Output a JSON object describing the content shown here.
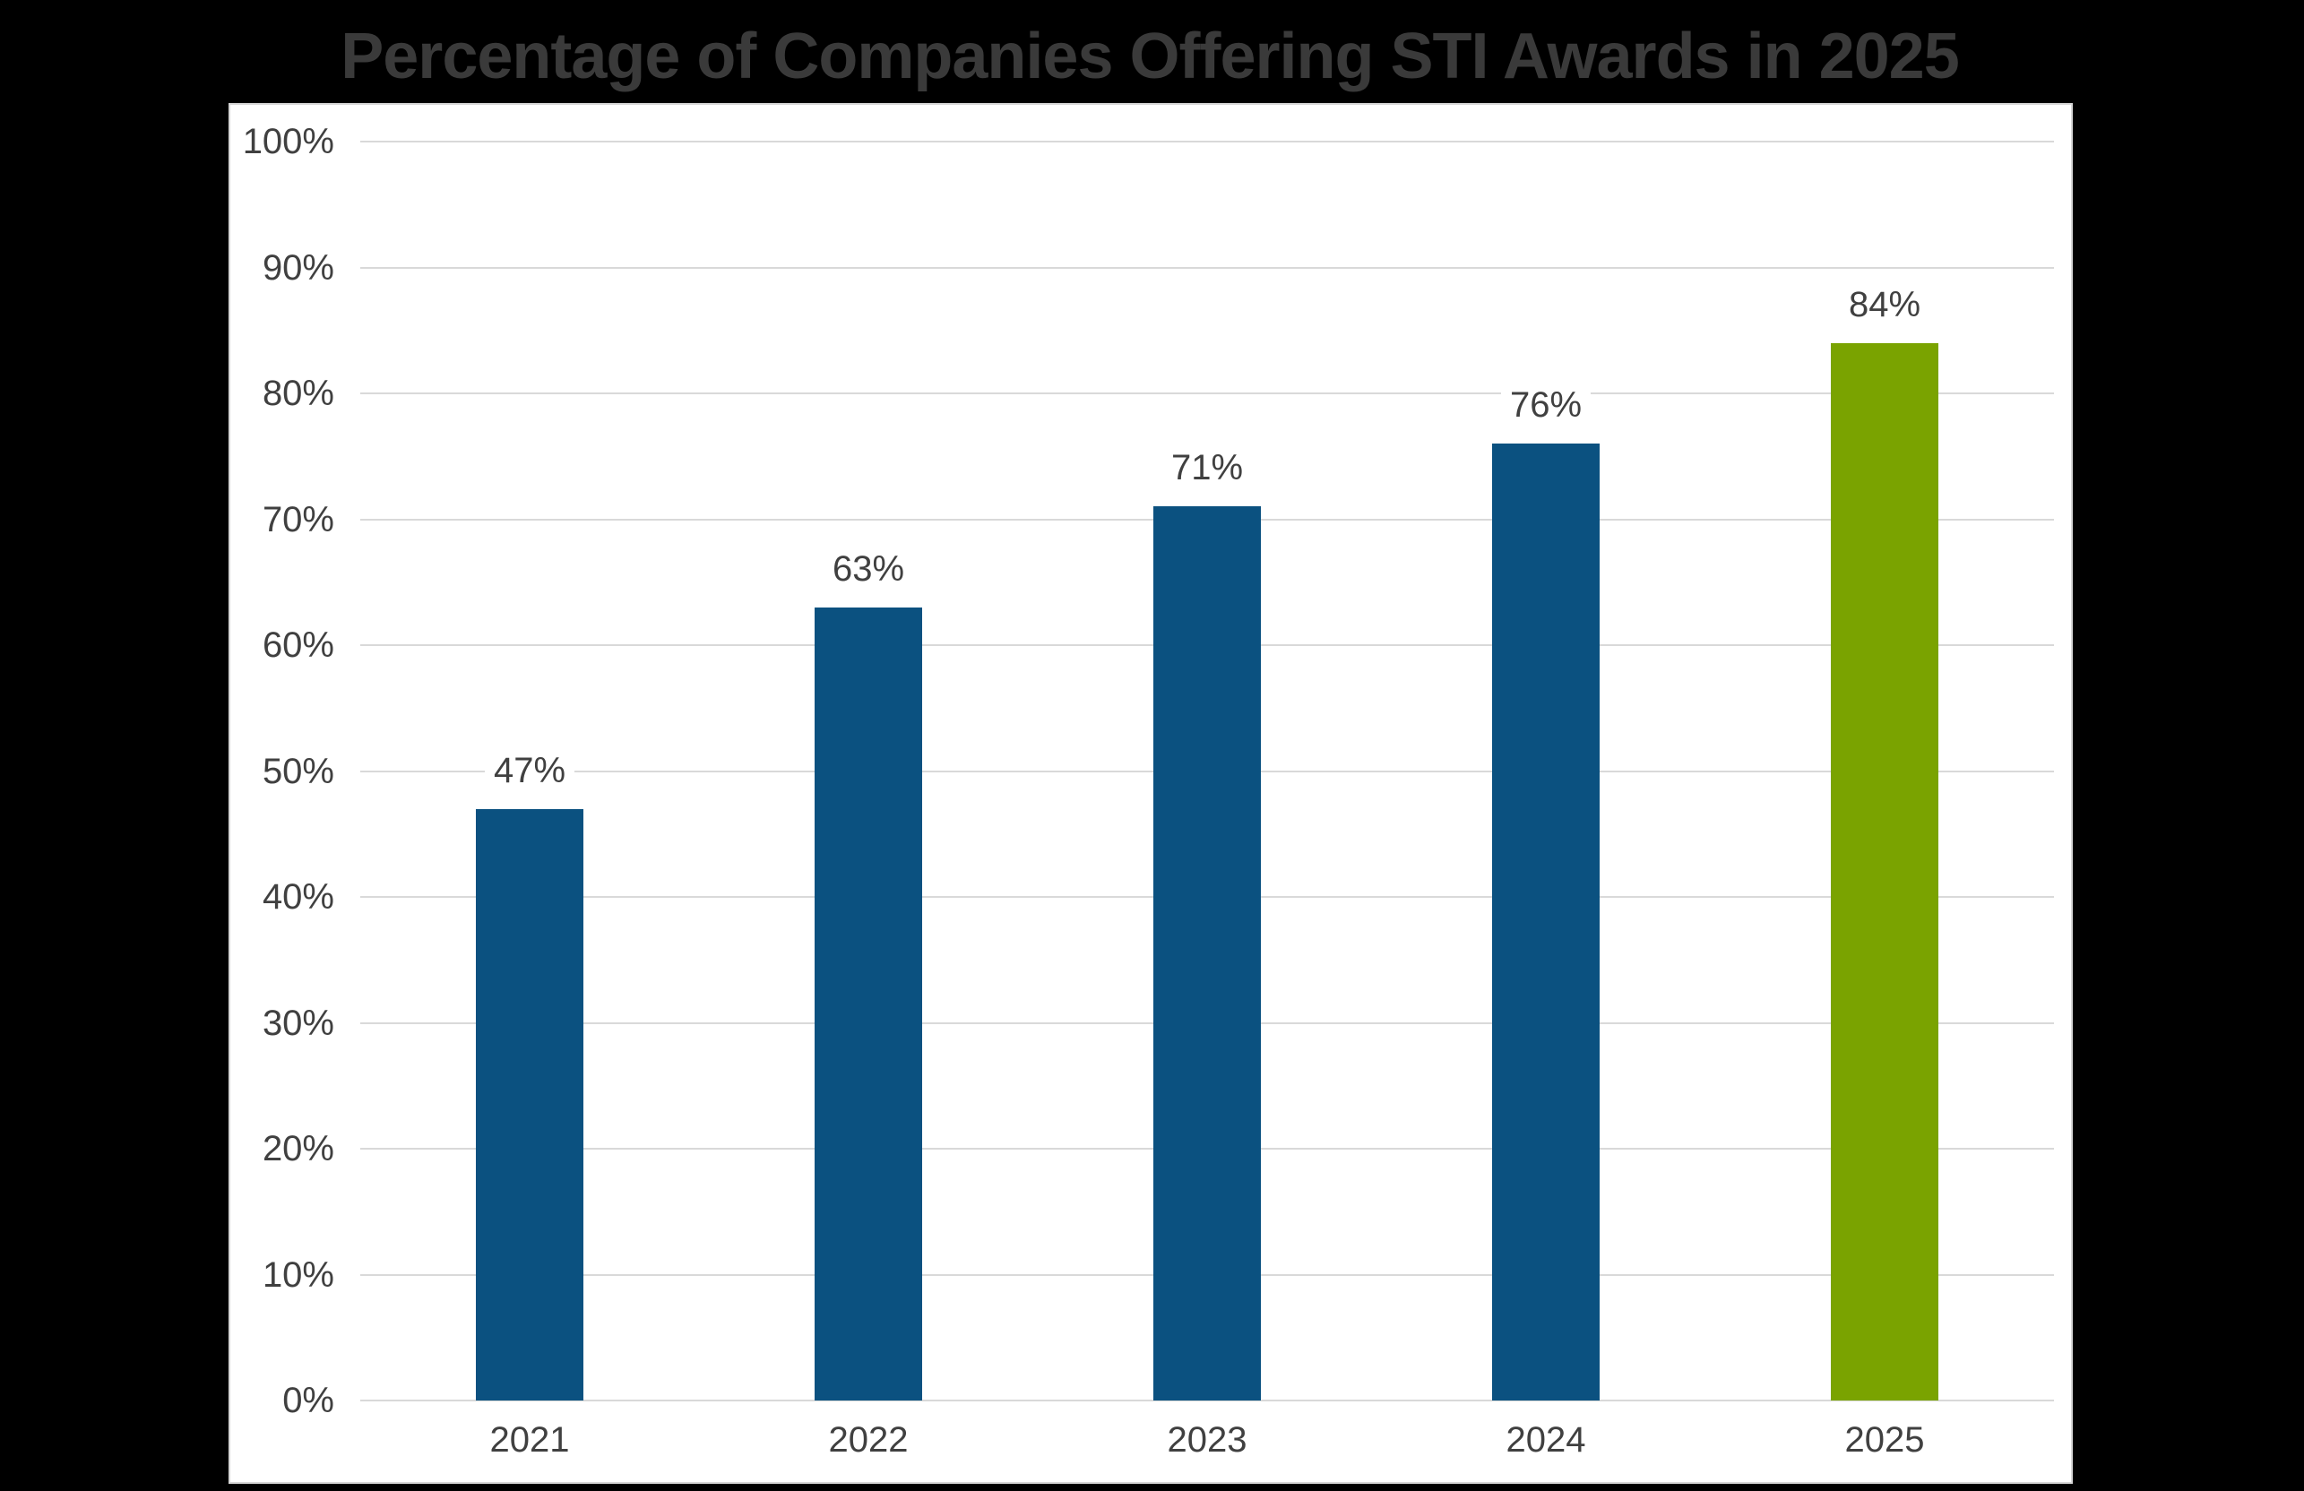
{
  "chart_data": {
    "type": "bar",
    "title": "Percentage of Companies Offering STI Awards in 2025",
    "categories": [
      "2021",
      "2022",
      "2023",
      "2024",
      "2025"
    ],
    "values": [
      47,
      63,
      71,
      76,
      84
    ],
    "value_labels": [
      "47%",
      "63%",
      "71%",
      "76%",
      "84%"
    ],
    "bar_colors": [
      "#0B5180",
      "#0B5180",
      "#0B5180",
      "#0B5180",
      "#7AA300"
    ],
    "xlabel": "",
    "ylabel": "",
    "ylim": [
      0,
      100
    ],
    "ytick_step": 10,
    "ytick_labels": [
      "0%",
      "10%",
      "20%",
      "30%",
      "40%",
      "50%",
      "60%",
      "70%",
      "80%",
      "90%",
      "100%"
    ],
    "grid": "horizontal",
    "legend_position": "none",
    "colors": {
      "default_bar": "#0B5180",
      "highlight_bar": "#7AA300",
      "grid_line": "#D9D9D9",
      "tick_text": "#404040",
      "title_text": "#3A3A3A",
      "panel_background": "#FFFFFF",
      "canvas_background": "#000000",
      "panel_border": "#D6D6D6"
    }
  }
}
